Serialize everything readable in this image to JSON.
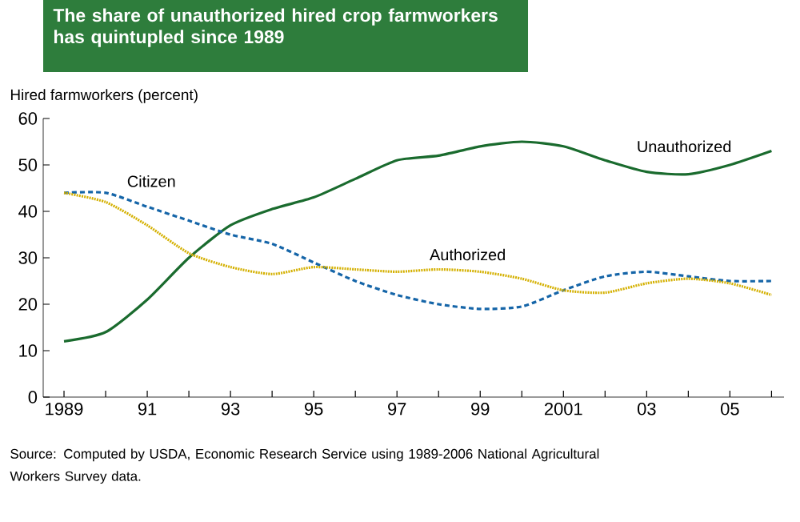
{
  "chart_data": {
    "type": "line",
    "title": "The share of unauthorized hired crop farmworkers has quintupled since 1989",
    "ylabel": "Hired farmworkers (percent)",
    "x": [
      1989,
      1990,
      1991,
      1992,
      1993,
      1994,
      1995,
      1996,
      1997,
      1998,
      1999,
      2000,
      2001,
      2002,
      2003,
      2004,
      2005,
      2006
    ],
    "series": [
      {
        "name": "Unauthorized",
        "color": "#1a6b2e",
        "line_style": "solid",
        "values": [
          12,
          14,
          21,
          30,
          37,
          40.5,
          43,
          47,
          51,
          52,
          54,
          55,
          54,
          51,
          48.5,
          48,
          50,
          53
        ]
      },
      {
        "name": "Citizen",
        "color": "#1565a8",
        "line_style": "dashed",
        "values": [
          44,
          44,
          41,
          38,
          35,
          33,
          29,
          25,
          22,
          20,
          19,
          19.5,
          23,
          26,
          27,
          26,
          25,
          25
        ]
      },
      {
        "name": "Authorized",
        "color": "#d4b000",
        "line_style": "dotted",
        "values": [
          44,
          42,
          37,
          31,
          28,
          26.5,
          28,
          27.5,
          27,
          27.5,
          27,
          25.5,
          23,
          22.5,
          24.5,
          25.5,
          24.5,
          22
        ]
      }
    ],
    "xlim": [
      1988.5,
      2006.3
    ],
    "xticks": [
      {
        "value": 1989,
        "label": "1989"
      },
      {
        "value": 1990,
        "label": null
      },
      {
        "value": 1991,
        "label": "91"
      },
      {
        "value": 1992,
        "label": null
      },
      {
        "value": 1993,
        "label": "93"
      },
      {
        "value": 1994,
        "label": null
      },
      {
        "value": 1995,
        "label": "95"
      },
      {
        "value": 1996,
        "label": null
      },
      {
        "value": 1997,
        "label": "97"
      },
      {
        "value": 1998,
        "label": null
      },
      {
        "value": 1999,
        "label": "99"
      },
      {
        "value": 2000,
        "label": null
      },
      {
        "value": 2001,
        "label": "2001"
      },
      {
        "value": 2002,
        "label": null
      },
      {
        "value": 2003,
        "label": "03"
      },
      {
        "value": 2004,
        "label": null
      },
      {
        "value": 2005,
        "label": "05"
      },
      {
        "value": 2006,
        "label": null
      }
    ],
    "ylim": [
      0,
      60
    ],
    "yticks": [
      0,
      10,
      20,
      30,
      40,
      50,
      60
    ],
    "grid": false,
    "annotations": [
      "Source:  Computed by USDA, Economic Research Service using 1989-2006 National Agricultural Workers Survey data."
    ]
  }
}
